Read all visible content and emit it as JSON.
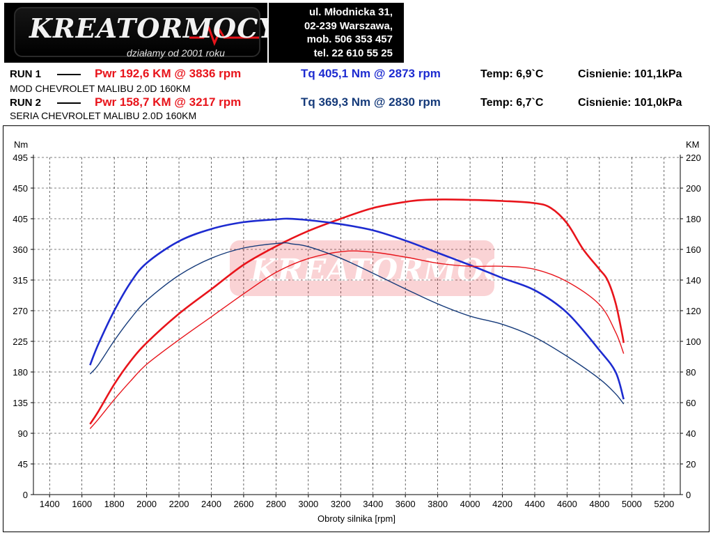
{
  "header": {
    "brand": "KREATORMOCY",
    "tagline": "działamy od 2001 roku",
    "contact": [
      "ul. Młodnicka 31,",
      "02-239  Warszawa,",
      "mob.  506 353 457",
      "tel.  22 610 55 25"
    ]
  },
  "runs": [
    {
      "label": "RUN 1",
      "pwr": "Pwr  192,6 KM @ 3836 rpm",
      "tq": "Tq 405,1 Nm @ 2873 rpm",
      "temp": "Temp: 6,9`C",
      "pressure": "Cisnienie: 101,1kPa",
      "model": "MOD CHEVROLET MALIBU 2.0D 160KM"
    },
    {
      "label": "RUN 2",
      "pwr": "Pwr  158,7 KM @ 3217 rpm",
      "tq": "Tq 369,3 Nm @ 2830 rpm",
      "temp": "Temp: 6,7`C",
      "pressure": "Cisnienie: 101,0kPa",
      "model": "SERIA CHEVROLET MALIBU 2.0D 160KM"
    }
  ],
  "colors": {
    "run1_power": "#e8141b",
    "run1_torque": "#1d2bd0",
    "run2_power": "#e8141b",
    "run2_torque": "#153a7a",
    "grid": "#000000"
  },
  "chart_data": {
    "type": "line",
    "xlabel": "Obroty silnika [rpm]",
    "ylabel_left": "Nm",
    "ylabel_right": "KM",
    "xlim": [
      1300,
      5300
    ],
    "ylim_left": [
      0,
      495
    ],
    "ylim_right": [
      0,
      220
    ],
    "x_ticks": [
      1400,
      1600,
      1800,
      2000,
      2200,
      2400,
      2600,
      2800,
      3000,
      3200,
      3400,
      3600,
      3800,
      4000,
      4200,
      4400,
      4600,
      4800,
      5000,
      5200
    ],
    "y_left_ticks": [
      0,
      45,
      90,
      135,
      180,
      225,
      270,
      315,
      360,
      405,
      450,
      495
    ],
    "y_right_ticks": [
      0,
      20,
      40,
      60,
      80,
      100,
      120,
      140,
      160,
      180,
      200,
      220
    ],
    "grid": true,
    "series": [
      {
        "name": "RUN 1 Pwr",
        "axis": "right",
        "x": [
          1650,
          1700,
          1800,
          1900,
          2000,
          2200,
          2400,
          2600,
          2800,
          3000,
          3200,
          3400,
          3600,
          3700,
          3836,
          4000,
          4200,
          4400,
          4500,
          4600,
          4700,
          4800,
          4850,
          4900,
          4940,
          4950
        ],
        "y": [
          46,
          54,
          72,
          87,
          99,
          118,
          134,
          150,
          162,
          172,
          180,
          187,
          191,
          192.2,
          192.6,
          192.3,
          191.6,
          190.2,
          187,
          177,
          160,
          147,
          140,
          125,
          105,
          99
        ]
      },
      {
        "name": "RUN 1 Tq",
        "axis": "left",
        "x": [
          1650,
          1700,
          1800,
          1900,
          2000,
          2200,
          2400,
          2600,
          2800,
          2873,
          3000,
          3200,
          3400,
          3600,
          3800,
          4000,
          4200,
          4400,
          4600,
          4800,
          4900,
          4950
        ],
        "y": [
          190,
          220,
          270,
          311,
          340,
          372,
          390,
          400,
          404,
          405.1,
          403,
          397,
          388,
          373,
          355,
          337,
          318,
          300,
          267,
          212,
          180,
          140
        ]
      },
      {
        "name": "RUN 2 Pwr",
        "axis": "right",
        "x": [
          1650,
          1700,
          1800,
          1900,
          2000,
          2200,
          2400,
          2600,
          2800,
          3000,
          3217,
          3400,
          3600,
          3800,
          4000,
          4200,
          4400,
          4600,
          4800,
          4900,
          4950
        ],
        "y": [
          43,
          49,
          62,
          74,
          85,
          101,
          116,
          131,
          145,
          154,
          158.7,
          158.2,
          155,
          151,
          149,
          149,
          147,
          139,
          124,
          106,
          92
        ]
      },
      {
        "name": "RUN 2 Tq",
        "axis": "left",
        "x": [
          1650,
          1700,
          1800,
          1900,
          2000,
          2200,
          2400,
          2600,
          2830,
          2900,
          3000,
          3200,
          3400,
          3600,
          3800,
          4000,
          4200,
          4400,
          4600,
          4800,
          4900,
          4950
        ],
        "y": [
          177,
          190,
          226,
          258,
          285,
          322,
          347,
          362,
          369.3,
          368,
          364,
          347,
          325,
          302,
          280,
          262,
          250,
          231,
          203,
          170,
          148,
          133
        ]
      }
    ]
  }
}
